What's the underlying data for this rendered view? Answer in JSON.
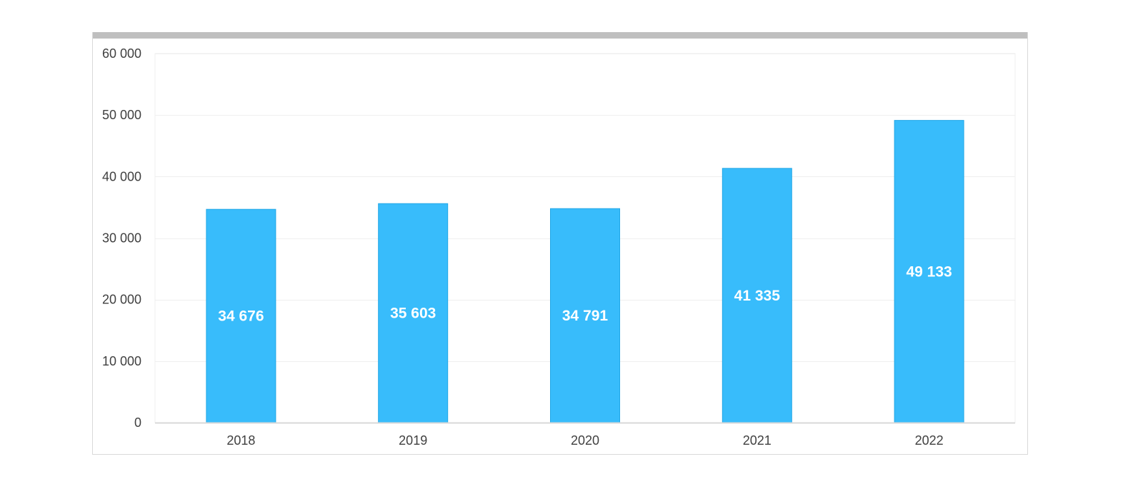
{
  "chart_data": {
    "type": "bar",
    "categories": [
      "2018",
      "2019",
      "2020",
      "2021",
      "2022"
    ],
    "values": [
      34676,
      35603,
      34791,
      41335,
      49133
    ],
    "data_labels": [
      "34 676",
      "35 603",
      "34 791",
      "41 335",
      "49 133"
    ],
    "y_ticks": [
      0,
      10000,
      20000,
      30000,
      40000,
      50000,
      60000
    ],
    "y_tick_labels": [
      "0",
      "10 000",
      "20 000",
      "30 000",
      "40 000",
      "50 000",
      "60 000"
    ],
    "ylim": [
      0,
      60000
    ],
    "grid": true,
    "legend": "none",
    "title": "",
    "xlabel": "",
    "ylabel": "",
    "colors": {
      "bar": "#38bcfb",
      "bar_edge": "#22a7e6",
      "gridline": "#efefef",
      "axis": "#d9d9d9",
      "panel_top_bar": "#bfbfbf"
    }
  }
}
